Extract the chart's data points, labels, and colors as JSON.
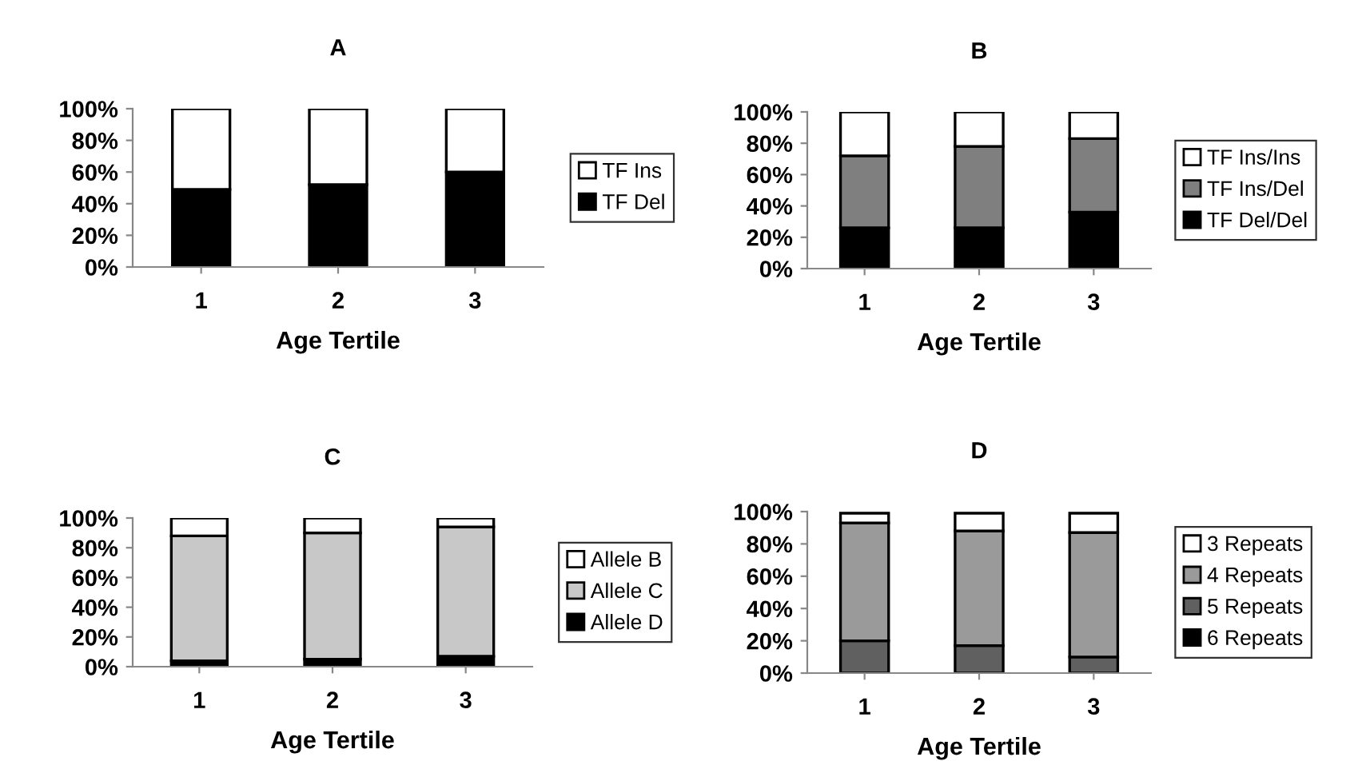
{
  "chart_data": [
    {
      "type": "bar",
      "title": "A",
      "xlabel": "Age Tertile",
      "categories": [
        "1",
        "2",
        "3"
      ],
      "stacked": true,
      "legend": "right",
      "grid": false,
      "ylim": [
        0,
        100
      ],
      "yticks": [
        {
          "value": 0,
          "label": "0%"
        },
        {
          "value": 20,
          "label": "20%"
        },
        {
          "value": 40,
          "label": "40%"
        },
        {
          "value": 60,
          "label": "60%"
        },
        {
          "value": 80,
          "label": "80%"
        },
        {
          "value": 100,
          "label": "100%"
        }
      ],
      "series": [
        {
          "name": "TF Del",
          "color": "#000000",
          "values": [
            49,
            52,
            60
          ]
        },
        {
          "name": "TF Ins",
          "color": "#ffffff",
          "values": [
            51,
            48,
            40
          ]
        }
      ]
    },
    {
      "type": "bar",
      "title": "B",
      "xlabel": "Age Tertile",
      "categories": [
        "1",
        "2",
        "3"
      ],
      "stacked": true,
      "legend": "right",
      "grid": false,
      "ylim": [
        0,
        100
      ],
      "yticks": [
        {
          "value": 0,
          "label": "0%"
        },
        {
          "value": 20,
          "label": "20%"
        },
        {
          "value": 40,
          "label": "40%"
        },
        {
          "value": 60,
          "label": "60%"
        },
        {
          "value": 80,
          "label": "80%"
        },
        {
          "value": 100,
          "label": "100%"
        }
      ],
      "series": [
        {
          "name": "TF Del/Del",
          "color": "#000000",
          "values": [
            26,
            26,
            36
          ]
        },
        {
          "name": "TF Ins/Del",
          "color": "#7f7f7f",
          "values": [
            46,
            52,
            47
          ]
        },
        {
          "name": "TF Ins/Ins",
          "color": "#ffffff",
          "values": [
            28,
            22,
            17
          ]
        }
      ]
    },
    {
      "type": "bar",
      "title": "C",
      "xlabel": "Age Tertile",
      "categories": [
        "1",
        "2",
        "3"
      ],
      "stacked": true,
      "legend": "right",
      "grid": false,
      "ylim": [
        0,
        100
      ],
      "yticks": [
        {
          "value": 0,
          "label": "0%"
        },
        {
          "value": 20,
          "label": "20%"
        },
        {
          "value": 40,
          "label": "40%"
        },
        {
          "value": 60,
          "label": "60%"
        },
        {
          "value": 80,
          "label": "80%"
        },
        {
          "value": 100,
          "label": "100%"
        }
      ],
      "series": [
        {
          "name": "Allele D",
          "color": "#000000",
          "values": [
            4,
            5,
            7
          ]
        },
        {
          "name": "Allele C",
          "color": "#c8c8c8",
          "values": [
            84,
            85,
            87
          ]
        },
        {
          "name": "Allele B",
          "color": "#ffffff",
          "values": [
            12,
            10,
            6
          ]
        }
      ]
    },
    {
      "type": "bar",
      "title": "D",
      "xlabel": "Age Tertile",
      "categories": [
        "1",
        "2",
        "3"
      ],
      "stacked": true,
      "legend": "right",
      "grid": false,
      "ylim": [
        0,
        100
      ],
      "yticks": [
        {
          "value": 0,
          "label": "0%"
        },
        {
          "value": 20,
          "label": "20%"
        },
        {
          "value": 40,
          "label": "40%"
        },
        {
          "value": 60,
          "label": "60%"
        },
        {
          "value": 80,
          "label": "80%"
        },
        {
          "value": 100,
          "label": "100%"
        }
      ],
      "series": [
        {
          "name": "6 Repeats",
          "color": "#000000",
          "values": [
            null,
            null,
            null
          ]
        },
        {
          "name": "5 Repeats",
          "color": "#606060",
          "values": [
            20,
            17,
            10
          ]
        },
        {
          "name": "4 Repeats",
          "color": "#9a9a9a",
          "values": [
            73,
            71,
            77
          ]
        },
        {
          "name": "3 Repeats",
          "color": "#ffffff",
          "values": [
            6,
            11,
            12
          ]
        }
      ]
    }
  ]
}
